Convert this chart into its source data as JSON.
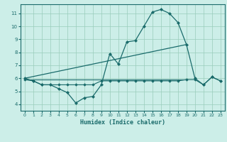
{
  "xlabel": "Humidex (Indice chaleur)",
  "bg_color": "#cceee8",
  "line_color": "#1a6b6b",
  "grid_color": "#99ccbb",
  "xlim": [
    -0.5,
    23.5
  ],
  "ylim": [
    3.5,
    11.7
  ],
  "xticks": [
    0,
    1,
    2,
    3,
    4,
    5,
    6,
    7,
    8,
    9,
    10,
    11,
    12,
    13,
    14,
    15,
    16,
    17,
    18,
    19,
    20,
    21,
    22,
    23
  ],
  "yticks": [
    4,
    5,
    6,
    7,
    8,
    9,
    10,
    11
  ],
  "line1_x": [
    0,
    1,
    2,
    3,
    4,
    5,
    6,
    7,
    8,
    9,
    10,
    11,
    12,
    13,
    14,
    15,
    16,
    17,
    18,
    19,
    20,
    21,
    22,
    23
  ],
  "line1_y": [
    6.0,
    5.8,
    5.5,
    5.5,
    5.2,
    4.9,
    4.1,
    4.5,
    4.6,
    5.5,
    7.9,
    7.1,
    8.8,
    8.9,
    10.0,
    11.1,
    11.3,
    11.0,
    10.3,
    8.6,
    6.0,
    5.5,
    6.1,
    5.8
  ],
  "line2_x": [
    0,
    19
  ],
  "line2_y": [
    6.0,
    8.6
  ],
  "line3_x": [
    0,
    1,
    2,
    3,
    4,
    5,
    6,
    7,
    8,
    9,
    10,
    11,
    12,
    13,
    14,
    15,
    16,
    17,
    18,
    19,
    20,
    21,
    22,
    23
  ],
  "line3_y": [
    5.9,
    5.8,
    5.5,
    5.5,
    5.5,
    5.5,
    5.5,
    5.5,
    5.5,
    5.8,
    5.8,
    5.8,
    5.8,
    5.8,
    5.8,
    5.8,
    5.8,
    5.8,
    5.8,
    5.9,
    5.9,
    5.5,
    6.1,
    5.8
  ],
  "line4_x": [
    0,
    19
  ],
  "line4_y": [
    5.9,
    5.9
  ]
}
